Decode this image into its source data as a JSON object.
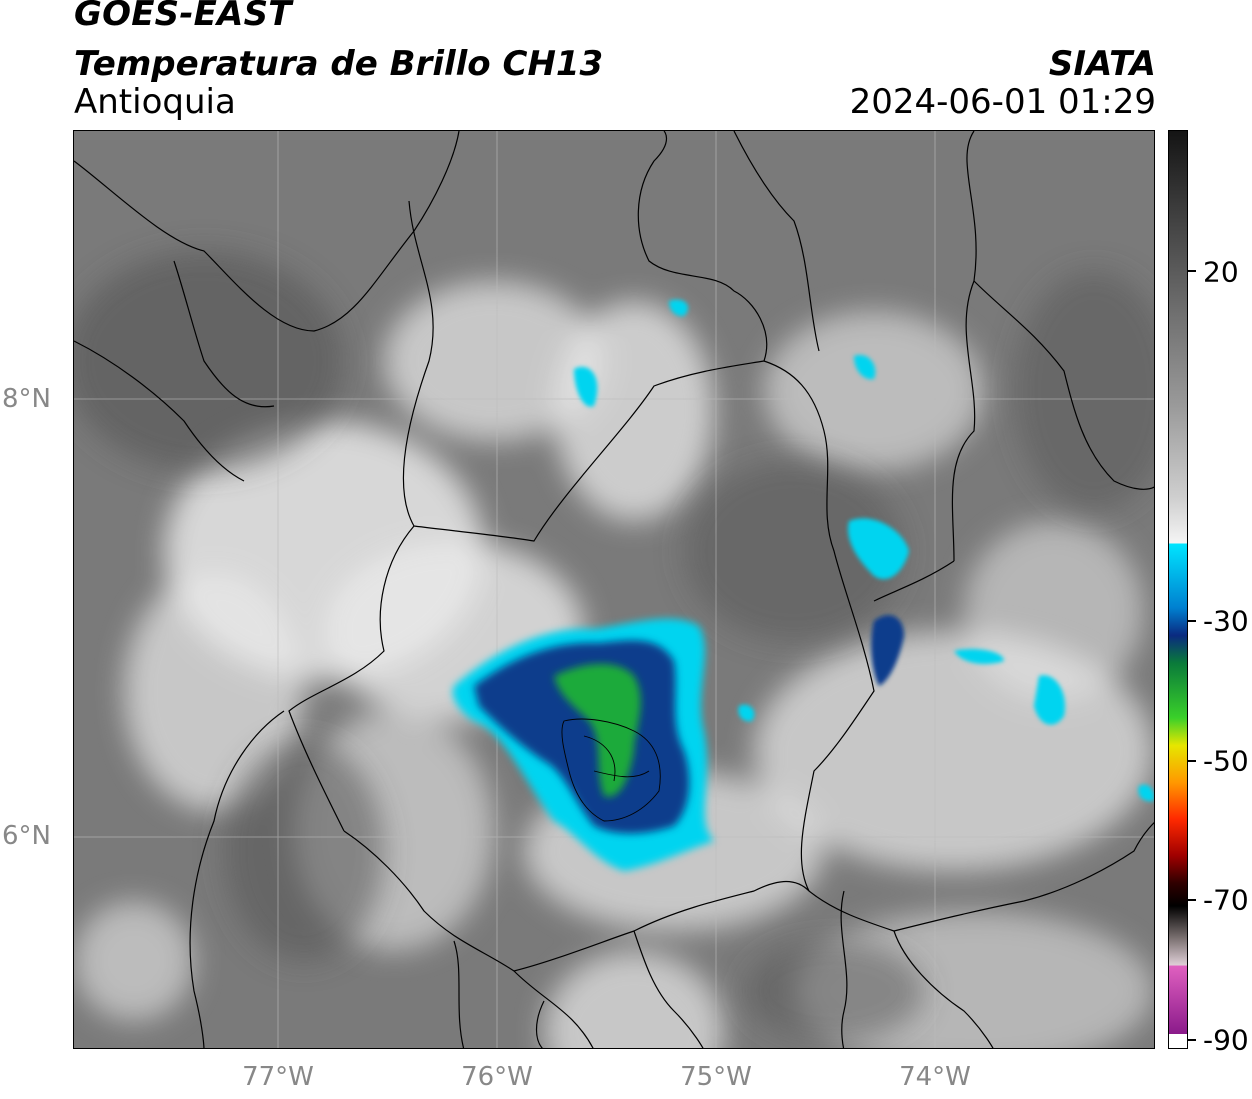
{
  "header": {
    "title": "GOES-EAST",
    "subtitle": "Temperatura de Brillo CH13",
    "region": "Antioquia",
    "organization": "SIATA",
    "datetime": "2024-06-01 01:29"
  },
  "map": {
    "latitude_labels": [
      "8°N",
      "6°N"
    ],
    "longitude_labels": [
      "77°W",
      "76°W",
      "75°W",
      "74°W"
    ]
  },
  "colorbar": {
    "tick_labels": [
      "20",
      "-30",
      "-50",
      "-70",
      "-90"
    ],
    "range": [
      -90,
      40
    ],
    "colors": {
      "warm_gray_top": "#1a1a1a",
      "mid_gray": "#808080",
      "light_gray": "#f0f0f0",
      "cyan": "#00e5ff",
      "blue": "#0a3c8c",
      "green": "#1faa3a",
      "yellow": "#e6e600",
      "orange": "#ff9900",
      "red": "#e60000",
      "dark_red": "#4d0000",
      "black": "#000000",
      "pink": "#e066c0",
      "magenta": "#8c1a8c"
    }
  }
}
